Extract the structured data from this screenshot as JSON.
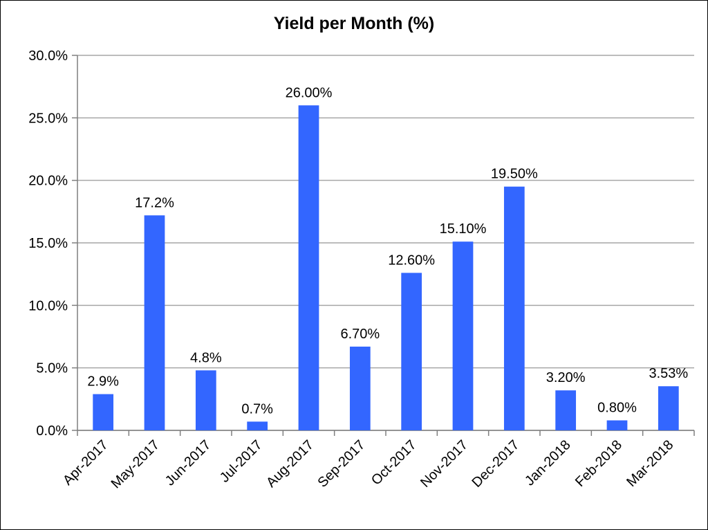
{
  "chart_data": {
    "type": "bar",
    "title": "Yield per Month (%)",
    "xlabel": "",
    "ylabel": "",
    "categories": [
      "Apr-2017",
      "May-2017",
      "Jun-2017",
      "Jul-2017",
      "Aug-2017",
      "Sep-2017",
      "Oct-2017",
      "Nov-2017",
      "Dec-2017",
      "Jan-2018",
      "Feb-2018",
      "Mar-2018"
    ],
    "values": [
      2.9,
      17.2,
      4.8,
      0.7,
      26.0,
      6.7,
      12.6,
      15.1,
      19.5,
      3.2,
      0.8,
      3.53
    ],
    "data_labels": [
      "2.9%",
      "17.2%",
      "4.8%",
      "0.7%",
      "26.00%",
      "6.70%",
      "12.60%",
      "15.10%",
      "19.50%",
      "3.20%",
      "0.80%",
      "3.53%"
    ],
    "ylim": [
      0,
      30
    ],
    "yticks": [
      0,
      5,
      10,
      15,
      20,
      25,
      30
    ],
    "ytick_labels": [
      "0.0%",
      "5.0%",
      "10.0%",
      "15.0%",
      "20.0%",
      "25.0%",
      "30.0%"
    ],
    "grid": true,
    "legend": "none",
    "bar_color": "#3366ff",
    "grid_color": "#a6a6a6"
  }
}
